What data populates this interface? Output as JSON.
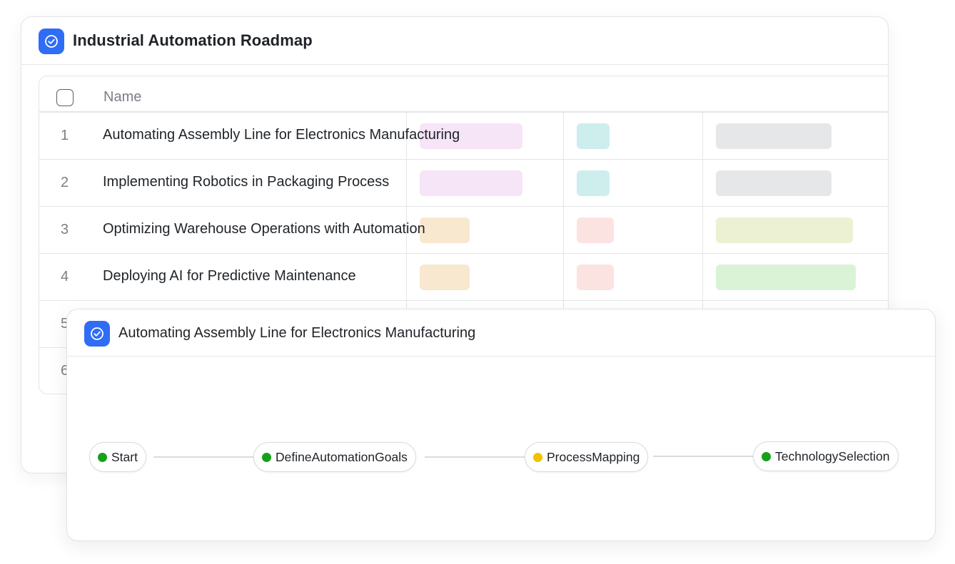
{
  "roadmap": {
    "title": "Industrial Automation Roadmap",
    "icon": "check-circle-icon",
    "accent": "#2f6df6",
    "table": {
      "columns": [
        "Name"
      ],
      "rows": [
        {
          "num": "1",
          "name": "Automating Assembly Line for Electronics Manufacturing"
        },
        {
          "num": "2",
          "name": "Implementing Robotics in Packaging Process"
        },
        {
          "num": "3",
          "name": "Optimizing Warehouse Operations with Automation"
        },
        {
          "num": "4",
          "name": "Deploying AI for Predictive Maintenance"
        },
        {
          "num": "5",
          "name": ""
        },
        {
          "num": "6",
          "name": ""
        }
      ],
      "tag_colors": {
        "pink": "#f6e4f7",
        "teal": "#cdeeec",
        "gray": "#e6e7e9",
        "orange": "#f8e8cf",
        "red": "#fbe3e2",
        "olive": "#ecf1d3",
        "green": "#daf3d6"
      }
    }
  },
  "detail": {
    "title": "Automating Assembly Line for Electronics Manufacturing",
    "icon": "check-circle-icon",
    "steps": [
      {
        "label": "Start",
        "status_color": "#16a11a"
      },
      {
        "label": "DefineAutomationGoals",
        "status_color": "#16a11a"
      },
      {
        "label": "ProcessMapping",
        "status_color": "#f2c200"
      },
      {
        "label": "TechnologySelection",
        "status_color": "#16a11a"
      }
    ]
  }
}
